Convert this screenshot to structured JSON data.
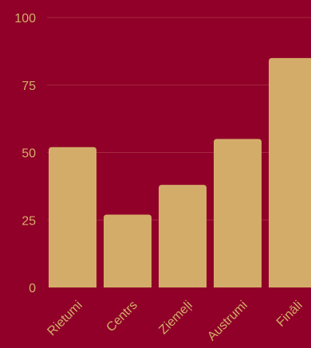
{
  "chart_data": {
    "type": "bar",
    "categories": [
      "Rietumi",
      "Centrs",
      "Ziemeļi",
      "Austrumi",
      "Fināli"
    ],
    "values": [
      52,
      27,
      38,
      55,
      85
    ],
    "ylim": [
      0,
      100
    ],
    "yticks": [
      0,
      25,
      50,
      75,
      100
    ],
    "grid": true,
    "colors": {
      "background": "#900028",
      "bar": "#D4AC6A",
      "text": "#D4AC6A",
      "grid": "#A8283E"
    }
  }
}
